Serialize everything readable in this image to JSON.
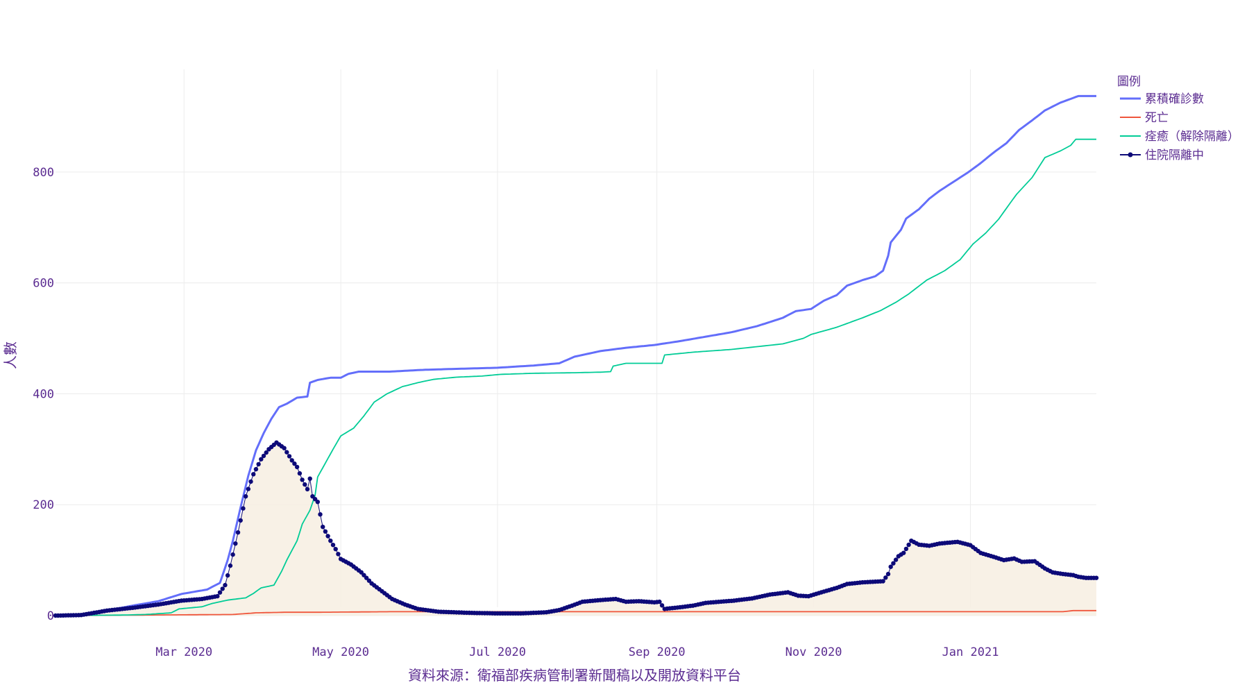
{
  "chart_data": {
    "type": "line",
    "xlabel": "資料來源：衛福部疾病管制署新聞稿以及開放資料平台",
    "ylabel": "人數",
    "legend_title": "圖例",
    "legend_position": "right",
    "grid": true,
    "xlim": [
      "2020-01-11",
      "2021-02-19"
    ],
    "ylim": [
      -35,
      985
    ],
    "x_ticks": [
      {
        "date": "2020-03-01",
        "label": "Mar 2020"
      },
      {
        "date": "2020-05-01",
        "label": "May 2020"
      },
      {
        "date": "2020-07-01",
        "label": "Jul 2020"
      },
      {
        "date": "2020-09-01",
        "label": "Sep 2020"
      },
      {
        "date": "2020-11-01",
        "label": "Nov 2020"
      },
      {
        "date": "2021-01-01",
        "label": "Jan 2021"
      }
    ],
    "y_ticks": [
      0,
      200,
      400,
      600,
      800
    ],
    "series": [
      {
        "name": "累積確診數",
        "color": "#636efa",
        "style": "line",
        "points": [
          [
            "2020-01-11",
            0
          ],
          [
            "2020-01-21",
            1
          ],
          [
            "2020-02-01",
            10
          ],
          [
            "2020-02-10",
            18
          ],
          [
            "2020-02-20",
            26
          ],
          [
            "2020-02-29",
            39
          ],
          [
            "2020-03-10",
            47
          ],
          [
            "2020-03-15",
            59
          ],
          [
            "2020-03-18",
            100
          ],
          [
            "2020-03-20",
            135
          ],
          [
            "2020-03-23",
            195
          ],
          [
            "2020-03-26",
            252
          ],
          [
            "2020-03-29",
            298
          ],
          [
            "2020-04-01",
            329
          ],
          [
            "2020-04-04",
            355
          ],
          [
            "2020-04-07",
            376
          ],
          [
            "2020-04-10",
            382
          ],
          [
            "2020-04-14",
            393
          ],
          [
            "2020-04-18",
            395
          ],
          [
            "2020-04-19",
            420
          ],
          [
            "2020-04-22",
            425
          ],
          [
            "2020-04-27",
            429
          ],
          [
            "2020-05-01",
            429
          ],
          [
            "2020-05-04",
            436
          ],
          [
            "2020-05-08",
            440
          ],
          [
            "2020-05-20",
            440
          ],
          [
            "2020-06-01",
            443
          ],
          [
            "2020-06-15",
            445
          ],
          [
            "2020-07-01",
            447
          ],
          [
            "2020-07-15",
            451
          ],
          [
            "2020-07-25",
            455
          ],
          [
            "2020-07-31",
            467
          ],
          [
            "2020-08-10",
            477
          ],
          [
            "2020-08-20",
            483
          ],
          [
            "2020-08-31",
            488
          ],
          [
            "2020-09-10",
            495
          ],
          [
            "2020-09-20",
            503
          ],
          [
            "2020-09-30",
            511
          ],
          [
            "2020-10-10",
            522
          ],
          [
            "2020-10-20",
            537
          ],
          [
            "2020-10-25",
            549
          ],
          [
            "2020-10-31",
            553
          ],
          [
            "2020-11-05",
            568
          ],
          [
            "2020-11-10",
            578
          ],
          [
            "2020-11-14",
            595
          ],
          [
            "2020-11-20",
            605
          ],
          [
            "2020-11-25",
            612
          ],
          [
            "2020-11-28",
            622
          ],
          [
            "2020-11-30",
            649
          ],
          [
            "2020-12-01",
            673
          ],
          [
            "2020-12-05",
            696
          ],
          [
            "2020-12-07",
            716
          ],
          [
            "2020-12-12",
            733
          ],
          [
            "2020-12-16",
            752
          ],
          [
            "2020-12-20",
            766
          ],
          [
            "2020-12-25",
            781
          ],
          [
            "2020-12-31",
            799
          ],
          [
            "2021-01-05",
            816
          ],
          [
            "2021-01-10",
            835
          ],
          [
            "2021-01-15",
            852
          ],
          [
            "2021-01-20",
            876
          ],
          [
            "2021-01-25",
            893
          ],
          [
            "2021-01-30",
            911
          ],
          [
            "2021-02-05",
            925
          ],
          [
            "2021-02-12",
            937
          ],
          [
            "2021-02-19",
            937
          ]
        ]
      },
      {
        "name": "死亡",
        "color": "#ef553b",
        "style": "line",
        "points": [
          [
            "2020-01-11",
            0
          ],
          [
            "2020-02-15",
            1
          ],
          [
            "2020-03-20",
            2
          ],
          [
            "2020-03-29",
            5
          ],
          [
            "2020-04-09",
            6
          ],
          [
            "2020-04-20",
            6
          ],
          [
            "2020-05-20",
            7
          ],
          [
            "2021-02-06",
            7
          ],
          [
            "2021-02-10",
            9
          ],
          [
            "2021-02-19",
            9
          ]
        ]
      },
      {
        "name": "痊癒（解除隔離）",
        "color": "#00cc96",
        "style": "line",
        "points": [
          [
            "2020-01-11",
            0
          ],
          [
            "2020-02-06",
            1
          ],
          [
            "2020-02-15",
            2
          ],
          [
            "2020-02-25",
            5
          ],
          [
            "2020-02-28",
            12
          ],
          [
            "2020-03-08",
            16
          ],
          [
            "2020-03-12",
            22
          ],
          [
            "2020-03-18",
            28
          ],
          [
            "2020-03-25",
            32
          ],
          [
            "2020-03-28",
            40
          ],
          [
            "2020-03-31",
            50
          ],
          [
            "2020-04-05",
            55
          ],
          [
            "2020-04-08",
            80
          ],
          [
            "2020-04-10",
            100
          ],
          [
            "2020-04-14",
            135
          ],
          [
            "2020-04-16",
            165
          ],
          [
            "2020-04-19",
            190
          ],
          [
            "2020-04-21",
            217
          ],
          [
            "2020-04-22",
            250
          ],
          [
            "2020-04-25",
            275
          ],
          [
            "2020-04-28",
            300
          ],
          [
            "2020-05-01",
            324
          ],
          [
            "2020-05-06",
            338
          ],
          [
            "2020-05-10",
            360
          ],
          [
            "2020-05-14",
            385
          ],
          [
            "2020-05-19",
            400
          ],
          [
            "2020-05-25",
            413
          ],
          [
            "2020-05-31",
            420
          ],
          [
            "2020-06-06",
            426
          ],
          [
            "2020-06-15",
            430
          ],
          [
            "2020-06-25",
            432
          ],
          [
            "2020-07-02",
            435
          ],
          [
            "2020-07-15",
            437
          ],
          [
            "2020-07-31",
            438
          ],
          [
            "2020-08-10",
            439
          ],
          [
            "2020-08-14",
            440
          ],
          [
            "2020-08-15",
            450
          ],
          [
            "2020-08-20",
            455
          ],
          [
            "2020-09-03",
            455
          ],
          [
            "2020-09-04",
            470
          ],
          [
            "2020-09-15",
            475
          ],
          [
            "2020-09-30",
            480
          ],
          [
            "2020-10-10",
            485
          ],
          [
            "2020-10-20",
            490
          ],
          [
            "2020-10-28",
            500
          ],
          [
            "2020-10-31",
            507
          ],
          [
            "2020-11-10",
            520
          ],
          [
            "2020-11-20",
            537
          ],
          [
            "2020-11-27",
            550
          ],
          [
            "2020-12-03",
            565
          ],
          [
            "2020-12-08",
            580
          ],
          [
            "2020-12-15",
            605
          ],
          [
            "2020-12-22",
            622
          ],
          [
            "2020-12-28",
            642
          ],
          [
            "2021-01-02",
            670
          ],
          [
            "2021-01-07",
            690
          ],
          [
            "2021-01-12",
            715
          ],
          [
            "2021-01-16",
            741
          ],
          [
            "2021-01-19",
            760
          ],
          [
            "2021-01-25",
            790
          ],
          [
            "2021-01-30",
            826
          ],
          [
            "2021-02-05",
            838
          ],
          [
            "2021-02-09",
            848
          ],
          [
            "2021-02-11",
            859
          ],
          [
            "2021-02-19",
            859
          ]
        ]
      },
      {
        "name": "住院隔離中",
        "color": "#0d0a78",
        "style": "line+markers",
        "fill": "#f7efe2",
        "points": [
          [
            "2020-01-11",
            0
          ],
          [
            "2020-01-21",
            1
          ],
          [
            "2020-01-31",
            9
          ],
          [
            "2020-02-10",
            14
          ],
          [
            "2020-02-20",
            20
          ],
          [
            "2020-02-29",
            27
          ],
          [
            "2020-03-08",
            30
          ],
          [
            "2020-03-14",
            35
          ],
          [
            "2020-03-17",
            55
          ],
          [
            "2020-03-19",
            90
          ],
          [
            "2020-03-22",
            150
          ],
          [
            "2020-03-25",
            215
          ],
          [
            "2020-03-28",
            255
          ],
          [
            "2020-03-31",
            282
          ],
          [
            "2020-04-03",
            300
          ],
          [
            "2020-04-06",
            312
          ],
          [
            "2020-04-09",
            302
          ],
          [
            "2020-04-12",
            280
          ],
          [
            "2020-04-14",
            268
          ],
          [
            "2020-04-16",
            245
          ],
          [
            "2020-04-18",
            228
          ],
          [
            "2020-04-19",
            247
          ],
          [
            "2020-04-20",
            215
          ],
          [
            "2020-04-22",
            205
          ],
          [
            "2020-04-24",
            160
          ],
          [
            "2020-04-27",
            135
          ],
          [
            "2020-04-29",
            120
          ],
          [
            "2020-05-01",
            102
          ],
          [
            "2020-05-05",
            92
          ],
          [
            "2020-05-09",
            78
          ],
          [
            "2020-05-13",
            58
          ],
          [
            "2020-05-17",
            44
          ],
          [
            "2020-05-21",
            30
          ],
          [
            "2020-05-26",
            20
          ],
          [
            "2020-05-31",
            12
          ],
          [
            "2020-06-08",
            7
          ],
          [
            "2020-06-20",
            5
          ],
          [
            "2020-07-01",
            4
          ],
          [
            "2020-07-10",
            4
          ],
          [
            "2020-07-20",
            6
          ],
          [
            "2020-07-25",
            10
          ],
          [
            "2020-07-30",
            18
          ],
          [
            "2020-08-03",
            25
          ],
          [
            "2020-08-10",
            28
          ],
          [
            "2020-08-16",
            30
          ],
          [
            "2020-08-20",
            25
          ],
          [
            "2020-08-25",
            26
          ],
          [
            "2020-08-31",
            24
          ],
          [
            "2020-09-02",
            25
          ],
          [
            "2020-09-04",
            12
          ],
          [
            "2020-09-10",
            15
          ],
          [
            "2020-09-15",
            18
          ],
          [
            "2020-09-20",
            23
          ],
          [
            "2020-10-01",
            27
          ],
          [
            "2020-10-08",
            31
          ],
          [
            "2020-10-15",
            38
          ],
          [
            "2020-10-22",
            42
          ],
          [
            "2020-10-26",
            36
          ],
          [
            "2020-10-30",
            35
          ],
          [
            "2020-11-04",
            42
          ],
          [
            "2020-11-10",
            50
          ],
          [
            "2020-11-14",
            57
          ],
          [
            "2020-11-20",
            60
          ],
          [
            "2020-11-28",
            62
          ],
          [
            "2020-11-30",
            75
          ],
          [
            "2020-12-01",
            88
          ],
          [
            "2020-12-04",
            107
          ],
          [
            "2020-12-06",
            113
          ],
          [
            "2020-12-09",
            135
          ],
          [
            "2020-12-12",
            128
          ],
          [
            "2020-12-16",
            126
          ],
          [
            "2020-12-20",
            130
          ],
          [
            "2020-12-27",
            133
          ],
          [
            "2021-01-01",
            127
          ],
          [
            "2021-01-05",
            113
          ],
          [
            "2021-01-10",
            106
          ],
          [
            "2021-01-14",
            100
          ],
          [
            "2021-01-18",
            103
          ],
          [
            "2021-01-21",
            97
          ],
          [
            "2021-01-26",
            98
          ],
          [
            "2021-01-30",
            85
          ],
          [
            "2021-02-02",
            78
          ],
          [
            "2021-02-06",
            75
          ],
          [
            "2021-02-10",
            73
          ],
          [
            "2021-02-12",
            70
          ],
          [
            "2021-02-15",
            68
          ],
          [
            "2021-02-19",
            68
          ]
        ]
      }
    ]
  }
}
